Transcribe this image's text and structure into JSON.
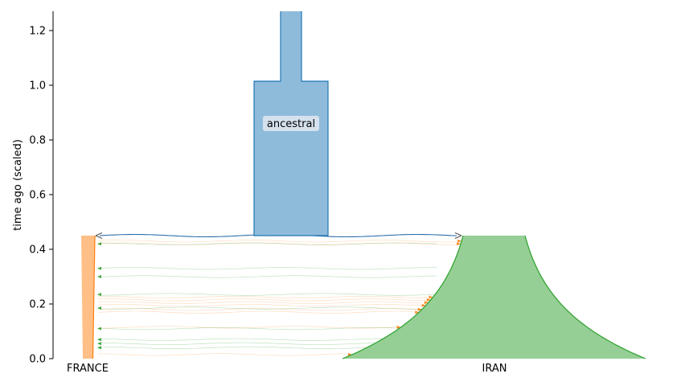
{
  "chart_data": {
    "type": "area",
    "title": "",
    "xlabel": "",
    "ylabel": "time ago (scaled)",
    "ylim": [
      0.0,
      1.27
    ],
    "yticks": [
      "0.0",
      "0.2",
      "0.4",
      "0.6",
      "0.8",
      "1.0",
      "1.2"
    ],
    "ytick_values": [
      0.0,
      0.2,
      0.4,
      0.6,
      0.8,
      1.0,
      1.2
    ],
    "demes": [
      {
        "name": "ancestral",
        "label": "ancestral",
        "start": 1.27,
        "end": 0.45,
        "color": "#1f77b4",
        "fill": "#8fbbdb"
      },
      {
        "name": "FRANCE",
        "label": "FRANCE",
        "start": 0.45,
        "end": 0.0,
        "color": "#ff7f0e",
        "fill": "#ffbf86"
      },
      {
        "name": "IRAN",
        "label": "IRAN",
        "start": 0.45,
        "end": 0.0,
        "color": "#2ca02c",
        "fill": "#95cf95"
      }
    ],
    "split_time": 0.45,
    "migrations_to_france": [
      0.42,
      0.33,
      0.3,
      0.235,
      0.185,
      0.11,
      0.07,
      0.055,
      0.04
    ],
    "migrations_to_iran": [
      0.43,
      0.42,
      0.225,
      0.215,
      0.205,
      0.195,
      0.18,
      0.17,
      0.115,
      0.015
    ]
  }
}
